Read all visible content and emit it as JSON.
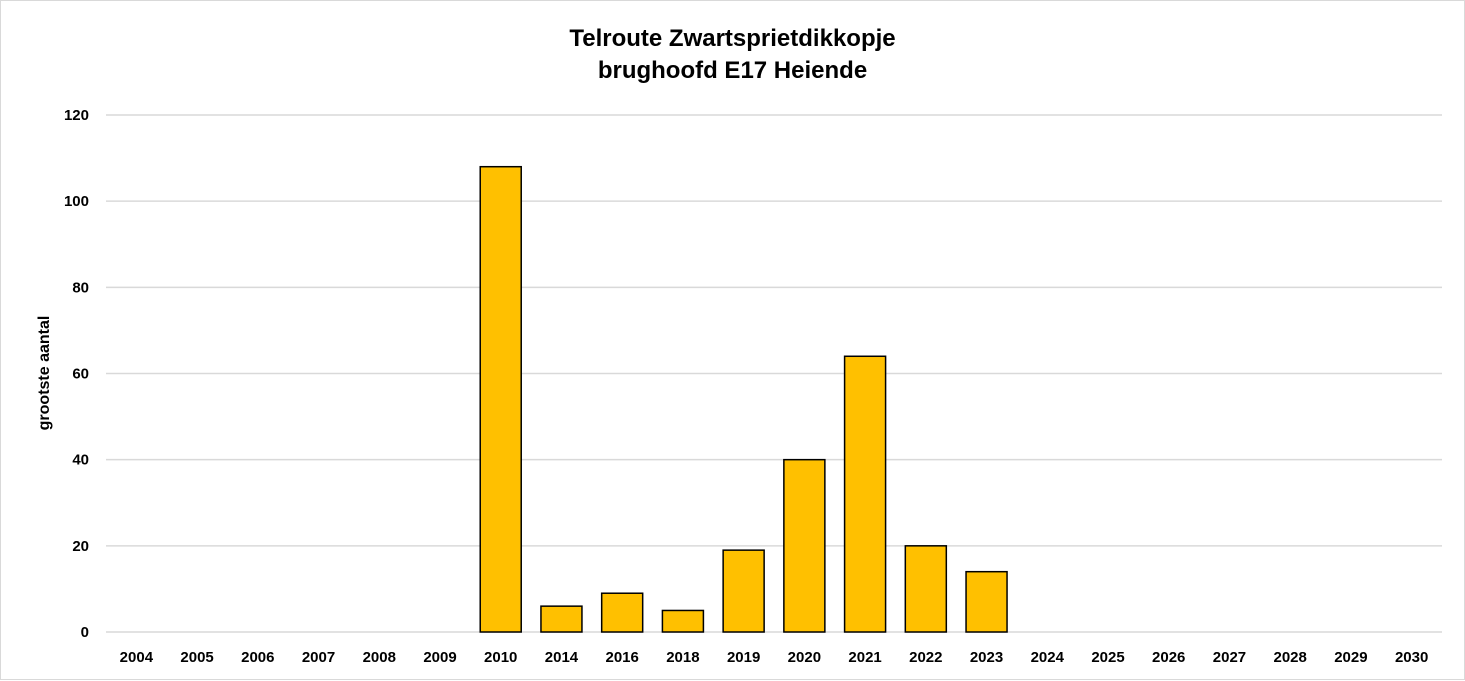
{
  "chart_data": {
    "type": "bar",
    "title_line1": "Telroute Zwartsprietdikkopje",
    "title_line2": "brughoofd E17 Heiende",
    "xlabel": "",
    "ylabel": "grootste aantal",
    "ylim": [
      0,
      120
    ],
    "yticks": [
      0,
      20,
      40,
      60,
      80,
      100,
      120
    ],
    "grid": true,
    "legend": "none",
    "bar_color": "#FFC000",
    "bar_edge_color": "#000000",
    "categories": [
      "2004",
      "2005",
      "2006",
      "2007",
      "2008",
      "2009",
      "2010",
      "2014",
      "2016",
      "2018",
      "2019",
      "2020",
      "2021",
      "2022",
      "2023",
      "2024",
      "2025",
      "2026",
      "2027",
      "2028",
      "2029",
      "2030"
    ],
    "values": [
      null,
      null,
      null,
      null,
      null,
      null,
      108,
      6,
      9,
      5,
      19,
      40,
      64,
      20,
      14,
      null,
      null,
      null,
      null,
      null,
      null,
      null
    ]
  }
}
